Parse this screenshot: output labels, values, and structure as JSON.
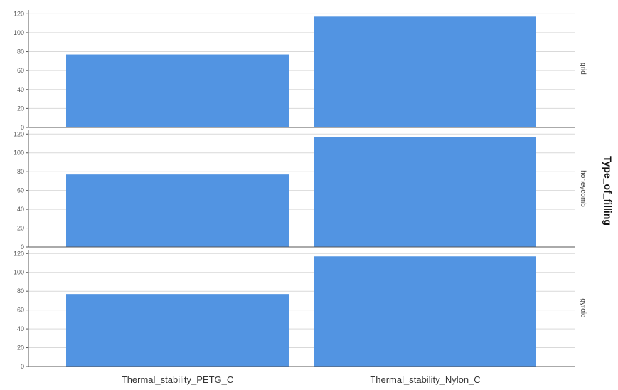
{
  "chart_data": {
    "type": "bar",
    "categories": [
      "Thermal_stability_PETG_C",
      "Thermal_stability_Nylon_C"
    ],
    "facet_title": "Type_of_filling",
    "panels": [
      {
        "name": "grid",
        "values": [
          77,
          117
        ]
      },
      {
        "name": "honeycomb",
        "values": [
          77,
          117
        ]
      },
      {
        "name": "gyroid",
        "values": [
          77,
          117
        ]
      }
    ],
    "yticks": [
      0,
      20,
      40,
      60,
      80,
      100,
      120
    ],
    "ylim": [
      0,
      124
    ],
    "grid": true,
    "bar_color": "#5294e2",
    "gridline_color": "#d9d9d9",
    "axis_color": "#555555"
  }
}
